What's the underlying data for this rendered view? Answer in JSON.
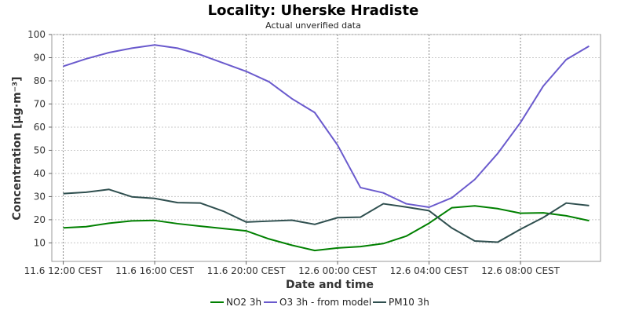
{
  "chart_data": {
    "type": "line",
    "title": "Locality: Uherske Hradiste",
    "subtitle": "Actual unverified data",
    "xlabel": "Date and time",
    "ylabel": "Concentration [µg·m⁻³]",
    "ylim": [
      2,
      100
    ],
    "yticks": [
      10,
      20,
      30,
      40,
      50,
      60,
      70,
      80,
      90,
      100
    ],
    "x_range": [
      -0.5,
      23.5
    ],
    "x_ticks": [
      {
        "x": 0,
        "label": "11.6 12:00 CEST"
      },
      {
        "x": 4,
        "label": "11.6 16:00 CEST"
      },
      {
        "x": 8,
        "label": "11.6 20:00 CEST"
      },
      {
        "x": 12,
        "label": "12.6 00:00 CEST"
      },
      {
        "x": 16,
        "label": "12.6 04:00 CEST"
      },
      {
        "x": 20,
        "label": "12.6 08:00 CEST"
      }
    ],
    "grid": true,
    "legend": "bottom",
    "x": [
      0,
      1,
      2,
      3,
      4,
      5,
      6,
      7,
      8,
      9,
      10,
      11,
      12,
      13,
      14,
      15,
      16,
      17,
      18,
      19,
      20,
      21,
      22,
      23
    ],
    "series": [
      {
        "name": "NO2 3h",
        "color": "#008000",
        "values": [
          16.5,
          17.0,
          18.5,
          19.5,
          19.7,
          18.3,
          17.2,
          16.2,
          15.2,
          11.7,
          9.0,
          6.7,
          7.8,
          8.4,
          9.7,
          12.9,
          18.5,
          25.2,
          26.0,
          24.8,
          22.8,
          23.0,
          21.7,
          19.6
        ]
      },
      {
        "name": "O3 3h - from model",
        "color": "#6a5acd",
        "values": [
          86.3,
          89.5,
          92.2,
          94.1,
          95.5,
          94.1,
          91.3,
          87.7,
          84.1,
          79.6,
          72.3,
          66.3,
          52.2,
          33.9,
          31.6,
          26.9,
          25.4,
          29.5,
          37.4,
          48.6,
          62.0,
          77.8,
          89.2,
          95.0
        ]
      },
      {
        "name": "PM10 3h",
        "color": "#2f4f4f",
        "values": [
          31.3,
          31.9,
          33.1,
          29.9,
          29.2,
          27.4,
          27.2,
          23.7,
          19.0,
          19.4,
          19.8,
          18.0,
          20.9,
          21.1,
          26.9,
          25.5,
          23.9,
          16.4,
          10.8,
          10.3,
          15.9,
          21.0,
          27.2,
          26.1
        ]
      }
    ]
  }
}
